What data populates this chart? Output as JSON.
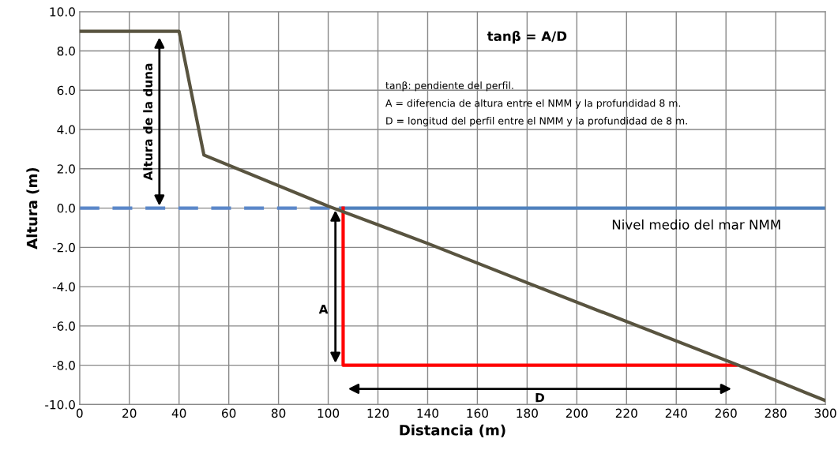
{
  "chart_data": {
    "type": "line",
    "xlabel": "Distancia (m)",
    "ylabel": "Altura (m)",
    "xlim": [
      0,
      300
    ],
    "ylim": [
      -10,
      10
    ],
    "xticks": [
      0,
      20,
      40,
      60,
      80,
      100,
      120,
      140,
      160,
      180,
      200,
      220,
      240,
      260,
      280,
      300
    ],
    "yticks": [
      {
        "value": -10,
        "label": "-10.0"
      },
      {
        "value": -8,
        "label": "-8.0"
      },
      {
        "value": -6,
        "label": "-6.0"
      },
      {
        "value": -4,
        "label": "-4.0"
      },
      {
        "value": -2,
        "label": "-2.0"
      },
      {
        "value": 0,
        "label": "0.0"
      },
      {
        "value": 2,
        "label": "2.0"
      },
      {
        "value": 4,
        "label": "4.0"
      },
      {
        "value": 6,
        "label": "6.0"
      },
      {
        "value": 8,
        "label": "8.0"
      },
      {
        "value": 10,
        "label": "10.0"
      }
    ],
    "grid": true,
    "marker": "none",
    "line_style": "solid",
    "series": [
      {
        "color": "#5b87c9",
        "x": [
          0,
          105
        ],
        "values": [
          0,
          0
        ],
        "line_style": "dashed"
      },
      {
        "color": "#4f81bd",
        "x": [
          105,
          300
        ],
        "values": [
          0,
          0
        ]
      },
      {
        "color": "#ff0000",
        "x": [
          106,
          106,
          264
        ],
        "values": [
          0,
          -8,
          -8
        ]
      },
      {
        "color": "#595440",
        "x": [
          0,
          40,
          50,
          100,
          140,
          180,
          265,
          300
        ],
        "values": [
          9,
          9,
          2.7,
          0.1,
          -1.8,
          -3.8,
          -8,
          -9.8
        ]
      }
    ],
    "annotations": [
      "tanβ = A/D",
      "tanβ: pendiente del perfil.",
      "A = diferencia de altura entre el NMM y la profundidad 8 m.",
      "D = longitud del perfil entre el NMM y la profundidad de 8 m.",
      "Altura de la duna",
      "Nivel medio del mar NMM",
      "A",
      "D"
    ]
  }
}
